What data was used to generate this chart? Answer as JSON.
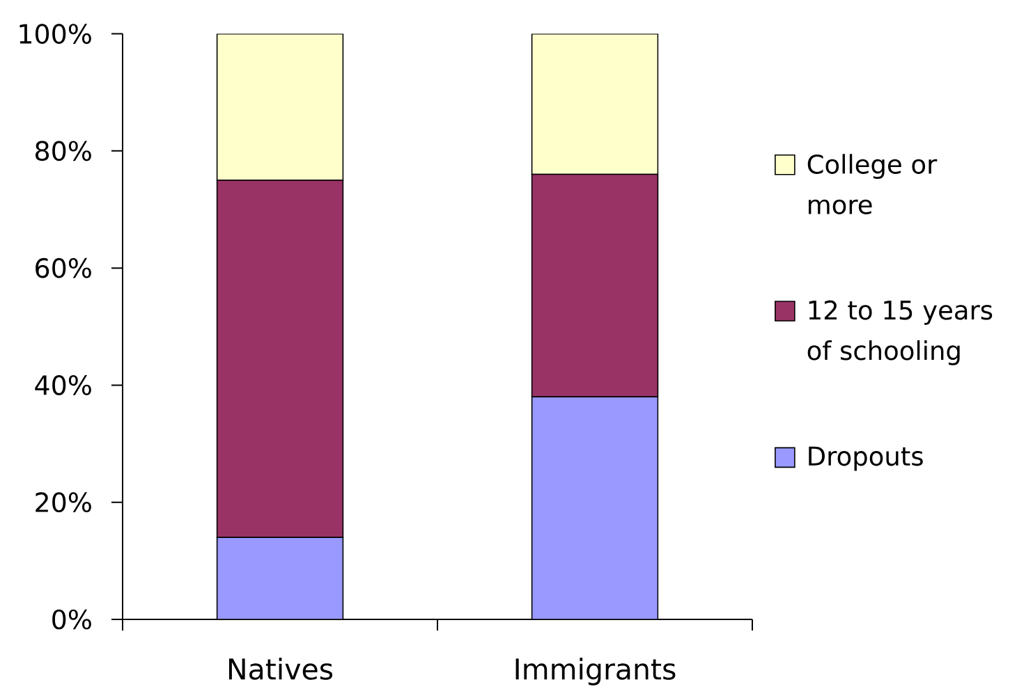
{
  "chart_data": {
    "type": "bar",
    "stacked": true,
    "categories": [
      "Natives",
      "Immigrants"
    ],
    "series": [
      {
        "name": "Dropouts",
        "color": "#9999ff",
        "values": [
          14,
          38
        ]
      },
      {
        "name": "12 to 15 years of schooling",
        "color": "#993366",
        "values": [
          61,
          38
        ]
      },
      {
        "name": "College or more",
        "color": "#ffffcc",
        "values": [
          25,
          24
        ]
      }
    ],
    "ylim": [
      0,
      100
    ],
    "yticks": [
      {
        "value": 0,
        "label": "0%"
      },
      {
        "value": 20,
        "label": "20%"
      },
      {
        "value": 40,
        "label": "40%"
      },
      {
        "value": 60,
        "label": "60%"
      },
      {
        "value": 80,
        "label": "80%"
      },
      {
        "value": 100,
        "label": "100%"
      }
    ],
    "legend": "right"
  }
}
